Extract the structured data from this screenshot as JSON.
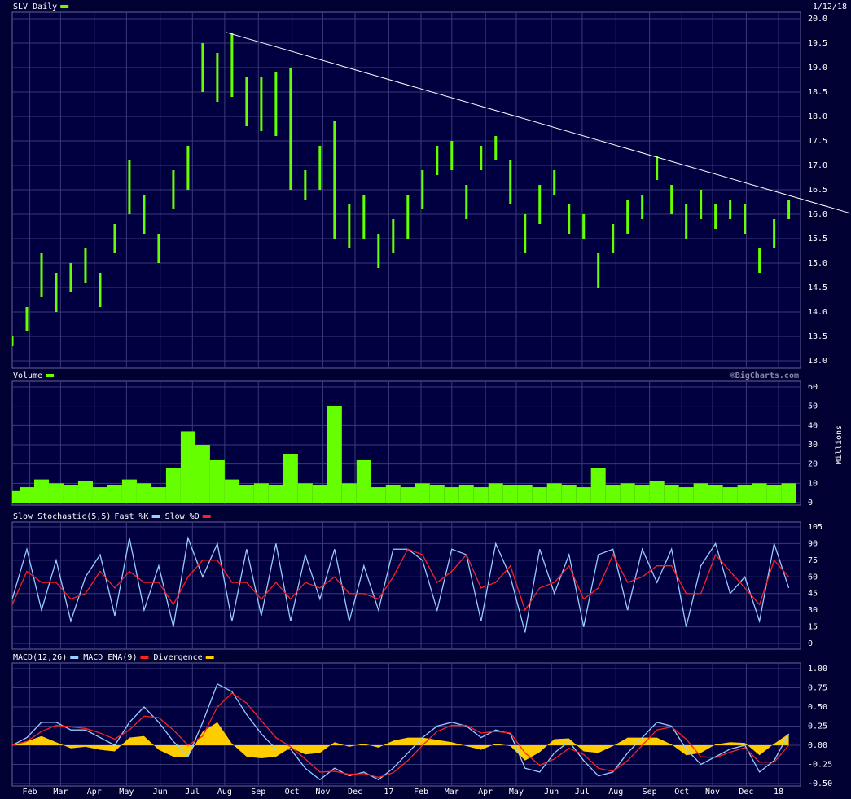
{
  "chart_data": [
    {
      "type": "range-bar",
      "title": "SLV Daily",
      "date": "1/12/18",
      "series": [
        {
          "name": "SLV Daily",
          "color": "#66ff00",
          "low": [
            13.3,
            13.6,
            14.3,
            14.0,
            14.4,
            14.6,
            14.1,
            15.2,
            16.0,
            15.6,
            15.0,
            16.1,
            16.5,
            18.5,
            18.3,
            18.4,
            17.8,
            17.7,
            17.6,
            16.5,
            16.3,
            16.5,
            15.5,
            15.3,
            15.5,
            14.9,
            15.2,
            15.5,
            16.1,
            16.8,
            16.9,
            15.9,
            16.9,
            17.1,
            16.2,
            15.2,
            15.8,
            16.4,
            15.6,
            15.5,
            14.5,
            15.2,
            15.6,
            15.9,
            16.7,
            16.0,
            15.5,
            15.9,
            15.7,
            15.9,
            15.6,
            14.8,
            15.3,
            15.9
          ],
          "high": [
            13.5,
            14.1,
            15.2,
            14.8,
            15.0,
            15.3,
            14.8,
            15.8,
            17.1,
            16.4,
            15.6,
            16.9,
            17.4,
            19.5,
            19.3,
            19.7,
            18.8,
            18.8,
            18.9,
            19.0,
            16.9,
            17.4,
            17.9,
            16.2,
            16.4,
            15.6,
            15.9,
            16.4,
            16.9,
            17.4,
            17.5,
            16.6,
            17.4,
            17.6,
            17.1,
            16.0,
            16.6,
            16.9,
            16.2,
            16.0,
            15.2,
            15.8,
            16.3,
            16.4,
            17.2,
            16.6,
            16.2,
            16.5,
            16.2,
            16.3,
            16.2,
            15.3,
            15.9,
            16.3
          ]
        }
      ],
      "trendline": {
        "color": "#ffffff",
        "x": [
          14.6,
          57.2
        ],
        "values": [
          19.72,
          16.02
        ]
      },
      "ylim": [
        13,
        20
      ],
      "yticks": [
        {
          "value": 13,
          "label": "13.0"
        },
        13.5,
        {
          "value": 14,
          "label": "14.0"
        },
        14.5,
        {
          "value": 15,
          "label": "15.0"
        },
        15.5,
        {
          "value": 16,
          "label": "16.0"
        },
        16.5,
        {
          "value": 17,
          "label": "17.0"
        },
        17.5,
        {
          "value": 18,
          "label": "18.0"
        },
        18.5,
        {
          "value": 19,
          "label": "19.0"
        },
        19.5,
        {
          "value": 20,
          "label": "20.0"
        }
      ]
    },
    {
      "type": "bar",
      "title": "Volume",
      "color": "#66ff00",
      "credit": "©BigCharts.com",
      "ylabel": "Millions",
      "values": [
        6,
        8,
        12,
        10,
        9,
        11,
        8,
        9,
        12,
        10,
        8,
        18,
        37,
        30,
        22,
        12,
        9,
        10,
        9,
        25,
        10,
        9,
        50,
        10,
        22,
        8,
        9,
        8,
        10,
        9,
        8,
        9,
        8,
        10,
        9,
        9,
        8,
        10,
        9,
        8,
        18,
        9,
        10,
        9,
        11,
        9,
        8,
        10,
        9,
        8,
        9,
        10,
        9,
        10
      ],
      "ylim": [
        0,
        60
      ],
      "yticks": [
        0,
        10,
        20,
        30,
        40,
        50,
        60
      ]
    },
    {
      "type": "line",
      "title": "Slow Stochastic(5,5)",
      "series": [
        {
          "name": "Fast %K",
          "color": "#99ccff",
          "values": [
            40,
            85,
            30,
            75,
            20,
            60,
            80,
            25,
            95,
            30,
            70,
            15,
            95,
            60,
            90,
            20,
            85,
            25,
            90,
            20,
            80,
            40,
            85,
            20,
            70,
            30,
            85,
            85,
            75,
            30,
            85,
            80,
            20,
            90,
            60,
            10,
            85,
            45,
            80,
            15,
            80,
            85,
            30,
            85,
            55,
            85,
            15,
            70,
            90,
            45,
            60,
            20,
            90,
            50
          ]
        },
        {
          "name": "Slow %D",
          "color": "#ff2020",
          "values": [
            35,
            65,
            55,
            55,
            40,
            45,
            65,
            50,
            65,
            55,
            55,
            35,
            60,
            75,
            75,
            55,
            55,
            40,
            55,
            40,
            55,
            50,
            60,
            45,
            45,
            40,
            60,
            85,
            80,
            55,
            65,
            80,
            50,
            55,
            70,
            30,
            50,
            55,
            70,
            40,
            50,
            80,
            55,
            60,
            70,
            70,
            45,
            45,
            80,
            65,
            50,
            35,
            75,
            60
          ]
        }
      ],
      "ylim": [
        0,
        105
      ],
      "yticks": [
        0,
        15,
        30,
        45,
        60,
        75,
        90,
        105
      ]
    },
    {
      "type": "macd",
      "series": [
        {
          "name": "MACD(12,26)",
          "color": "#99ccff",
          "values": [
            0.0,
            0.1,
            0.3,
            0.3,
            0.2,
            0.2,
            0.1,
            0.0,
            0.3,
            0.5,
            0.3,
            0.05,
            -0.15,
            0.3,
            0.8,
            0.7,
            0.4,
            0.15,
            -0.05,
            -0.05,
            -0.3,
            -0.45,
            -0.3,
            -0.4,
            -0.35,
            -0.45,
            -0.3,
            -0.1,
            0.1,
            0.25,
            0.3,
            0.25,
            0.1,
            0.2,
            0.15,
            -0.3,
            -0.35,
            -0.1,
            0.05,
            -0.2,
            -0.4,
            -0.35,
            -0.1,
            0.1,
            0.3,
            0.25,
            -0.05,
            -0.25,
            -0.15,
            -0.05,
            0.0,
            -0.35,
            -0.2,
            0.15
          ]
        },
        {
          "name": "MACD EMA(9)",
          "color": "#ff2020",
          "values": [
            0.0,
            0.05,
            0.18,
            0.26,
            0.24,
            0.22,
            0.16,
            0.08,
            0.2,
            0.38,
            0.36,
            0.2,
            0.0,
            0.12,
            0.5,
            0.68,
            0.55,
            0.32,
            0.1,
            -0.02,
            -0.18,
            -0.35,
            -0.34,
            -0.38,
            -0.37,
            -0.42,
            -0.36,
            -0.2,
            0.0,
            0.18,
            0.26,
            0.26,
            0.16,
            0.18,
            0.16,
            -0.1,
            -0.26,
            -0.18,
            -0.04,
            -0.12,
            -0.3,
            -0.34,
            -0.2,
            0.0,
            0.2,
            0.24,
            0.08,
            -0.15,
            -0.16,
            -0.09,
            -0.03,
            -0.22,
            -0.22,
            0.0
          ]
        },
        {
          "name": "Divergence",
          "color": "#ffcc00",
          "kind": "area",
          "values": [
            0.0,
            0.05,
            0.12,
            0.04,
            -0.04,
            -0.02,
            -0.06,
            -0.08,
            0.1,
            0.12,
            -0.06,
            -0.15,
            -0.15,
            0.18,
            0.3,
            0.02,
            -0.15,
            -0.17,
            -0.15,
            -0.03,
            -0.12,
            -0.1,
            0.04,
            -0.02,
            0.02,
            -0.03,
            0.06,
            0.1,
            0.1,
            0.07,
            0.04,
            -0.01,
            -0.06,
            0.02,
            -0.01,
            -0.2,
            -0.09,
            0.08,
            0.09,
            -0.08,
            -0.1,
            -0.01,
            0.1,
            0.1,
            0.1,
            0.01,
            -0.13,
            -0.1,
            0.01,
            0.04,
            0.03,
            -0.13,
            0.02,
            0.15
          ]
        }
      ],
      "ylim": [
        -0.5,
        1.0
      ],
      "yticks": [
        {
          "value": -0.5,
          "label": "-0.50"
        },
        -0.25,
        {
          "value": 0,
          "label": "0.00"
        },
        0.25,
        {
          "value": 0.5,
          "label": "0.50"
        },
        0.75,
        {
          "value": 1,
          "label": "1.00"
        }
      ],
      "xlim": [
        0,
        53.8
      ],
      "xticks": [
        {
          "value": 1.2,
          "label": "Feb"
        },
        {
          "value": 3.3,
          "label": "Mar"
        },
        {
          "value": 5.6,
          "label": "Apr"
        },
        {
          "value": 7.8,
          "label": "May"
        },
        {
          "value": 10.1,
          "label": "Jun"
        },
        {
          "value": 12.3,
          "label": "Jul"
        },
        {
          "value": 14.5,
          "label": "Aug"
        },
        {
          "value": 16.8,
          "label": "Sep"
        },
        {
          "value": 19.1,
          "label": "Oct"
        },
        {
          "value": 21.2,
          "label": "Nov"
        },
        {
          "value": 23.4,
          "label": "Dec"
        },
        {
          "value": 25.7,
          "label": "17"
        },
        {
          "value": 27.9,
          "label": "Feb"
        },
        {
          "value": 30.0,
          "label": "Mar"
        },
        {
          "value": 32.3,
          "label": "Apr"
        },
        {
          "value": 34.4,
          "label": "May"
        },
        {
          "value": 36.8,
          "label": "Jun"
        },
        {
          "value": 38.9,
          "label": "Jul"
        },
        {
          "value": 41.2,
          "label": "Aug"
        },
        {
          "value": 43.5,
          "label": "Sep"
        },
        {
          "value": 45.7,
          "label": "Oct"
        },
        {
          "value": 47.8,
          "label": "Nov"
        },
        {
          "value": 50.1,
          "label": "Dec"
        },
        {
          "value": 52.3,
          "label": "18"
        }
      ]
    }
  ]
}
